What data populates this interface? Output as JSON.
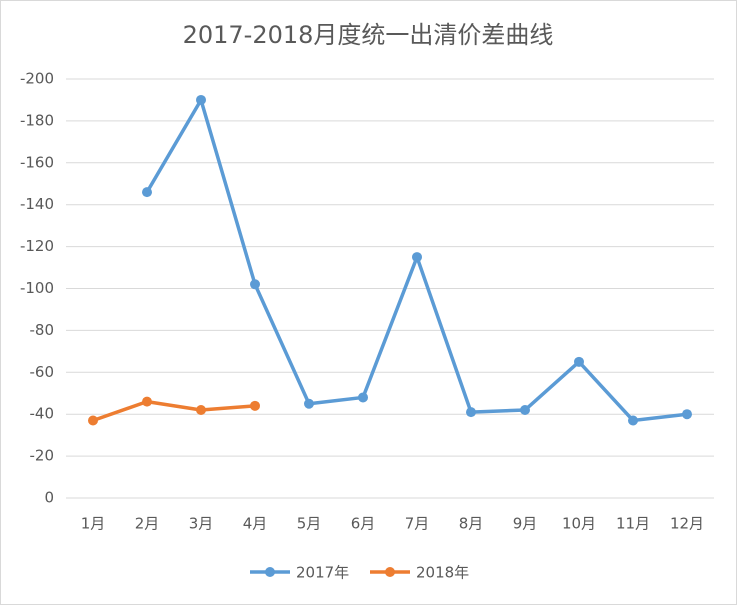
{
  "chart_data": {
    "type": "line",
    "title": "2017-2018月度统一出清价差曲线",
    "categories": [
      "1月",
      "2月",
      "3月",
      "4月",
      "5月",
      "6月",
      "7月",
      "8月",
      "9月",
      "10月",
      "11月",
      "12月"
    ],
    "series": [
      {
        "name": "2017年",
        "color": "#5b9bd5",
        "values": [
          null,
          -146,
          -190,
          -102,
          -45,
          -48,
          -115,
          -41,
          -42,
          -65,
          -37,
          -40
        ]
      },
      {
        "name": "2018年",
        "color": "#ed7d31",
        "values": [
          -37,
          -46,
          -42,
          -44,
          null,
          null,
          null,
          null,
          null,
          null,
          null,
          null
        ]
      }
    ],
    "ylim": [
      0,
      -200
    ],
    "yticks": [
      0,
      -20,
      -40,
      -60,
      -80,
      -100,
      -120,
      -140,
      -160,
      -180,
      -200
    ],
    "grid": true,
    "legend": "bottom"
  }
}
